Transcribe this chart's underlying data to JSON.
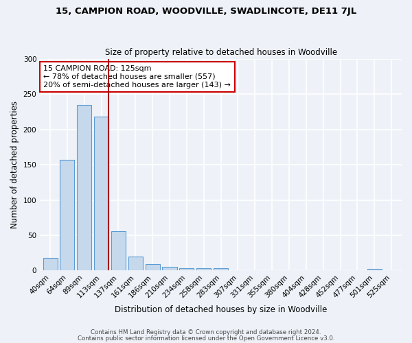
{
  "title": "15, CAMPION ROAD, WOODVILLE, SWADLINCOTE, DE11 7JL",
  "subtitle": "Size of property relative to detached houses in Woodville",
  "xlabel": "Distribution of detached houses by size in Woodville",
  "ylabel": "Number of detached properties",
  "bar_labels": [
    "40sqm",
    "64sqm",
    "89sqm",
    "113sqm",
    "137sqm",
    "161sqm",
    "186sqm",
    "210sqm",
    "234sqm",
    "258sqm",
    "283sqm",
    "307sqm",
    "331sqm",
    "355sqm",
    "380sqm",
    "404sqm",
    "428sqm",
    "452sqm",
    "477sqm",
    "501sqm",
    "525sqm"
  ],
  "bar_values": [
    18,
    157,
    235,
    218,
    56,
    20,
    9,
    5,
    3,
    3,
    3,
    0,
    0,
    0,
    0,
    0,
    0,
    0,
    0,
    2,
    0
  ],
  "bar_color": "#c6d9ec",
  "bar_edge_color": "#5b9bd5",
  "vline_color": "#aa0000",
  "ylim": [
    0,
    300
  ],
  "yticks": [
    0,
    50,
    100,
    150,
    200,
    250,
    300
  ],
  "annotation_title": "15 CAMPION ROAD: 125sqm",
  "annotation_line1": "← 78% of detached houses are smaller (557)",
  "annotation_line2": "20% of semi-detached houses are larger (143) →",
  "annotation_box_color": "#ffffff",
  "annotation_box_edge_color": "#cc0000",
  "footer1": "Contains HM Land Registry data © Crown copyright and database right 2024.",
  "footer2": "Contains public sector information licensed under the Open Government Licence v3.0.",
  "bg_color": "#eef2f8",
  "plot_bg_color": "#eef2f8",
  "grid_color": "#ffffff"
}
